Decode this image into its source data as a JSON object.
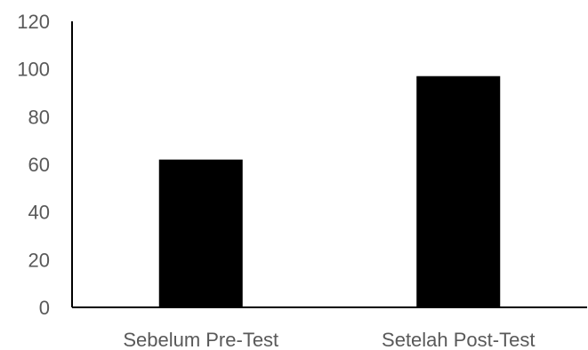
{
  "chart_data": {
    "type": "bar",
    "categories": [
      "Sebelum Pre-Test",
      "Setelah Post-Test"
    ],
    "values": [
      62,
      97
    ],
    "ylim": [
      0,
      120
    ],
    "yticks": [
      0,
      20,
      40,
      60,
      80,
      100,
      120
    ],
    "title": "",
    "xlabel": "",
    "ylabel": "",
    "grid": false,
    "legend": false,
    "colors": {
      "bar": "#000000",
      "axis": "#000000",
      "tick_text": "#595959"
    }
  }
}
